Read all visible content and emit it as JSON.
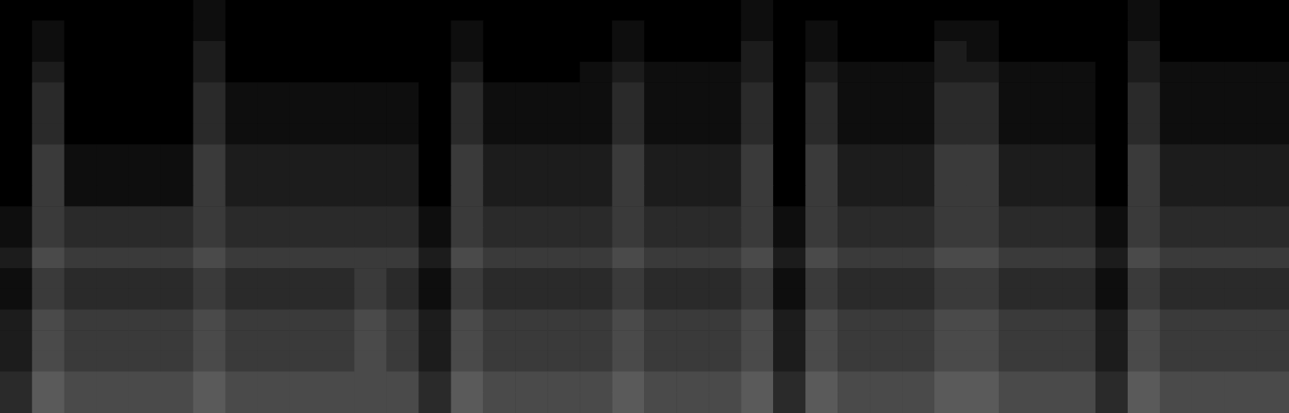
{
  "chart_data": {
    "type": "heatmap",
    "tick_labels": false,
    "grid": false,
    "zlim": [
      0,
      9
    ],
    "cells": [
      [
        0,
        0,
        0,
        0,
        0,
        0,
        1,
        0,
        0,
        0,
        0,
        0,
        0,
        0,
        0,
        0,
        0,
        0,
        0,
        0,
        0,
        0,
        0,
        1,
        0,
        0,
        0,
        0,
        0,
        0,
        0,
        0,
        0,
        0,
        0,
        1,
        0,
        0,
        0,
        0
      ],
      [
        0,
        1,
        0,
        0,
        0,
        0,
        1,
        0,
        0,
        0,
        0,
        0,
        0,
        0,
        1,
        0,
        0,
        0,
        0,
        1,
        0,
        0,
        0,
        1,
        0,
        1,
        0,
        0,
        0,
        1,
        1,
        0,
        0,
        0,
        0,
        1,
        0,
        0,
        0,
        0
      ],
      [
        0,
        1,
        0,
        0,
        0,
        0,
        2,
        0,
        0,
        0,
        0,
        0,
        0,
        0,
        1,
        0,
        0,
        0,
        0,
        1,
        0,
        0,
        0,
        2,
        0,
        1,
        0,
        0,
        0,
        2,
        1,
        0,
        0,
        0,
        0,
        2,
        0,
        0,
        0,
        0
      ],
      [
        0,
        2,
        0,
        0,
        0,
        0,
        2,
        0,
        0,
        0,
        0,
        0,
        0,
        0,
        2,
        0,
        0,
        0,
        1,
        2,
        1,
        1,
        1,
        2,
        0,
        2,
        1,
        1,
        1,
        2,
        2,
        1,
        1,
        1,
        0,
        2,
        1,
        1,
        1,
        1
      ],
      [
        0,
        3,
        0,
        0,
        0,
        0,
        3,
        1,
        1,
        1,
        1,
        1,
        1,
        0,
        3,
        1,
        1,
        1,
        1,
        3,
        1,
        1,
        1,
        3,
        0,
        3,
        1,
        1,
        1,
        3,
        3,
        1,
        1,
        1,
        0,
        3,
        1,
        1,
        1,
        1
      ],
      [
        0,
        3,
        0,
        0,
        0,
        0,
        3,
        1,
        1,
        1,
        1,
        1,
        1,
        0,
        3,
        1,
        1,
        1,
        1,
        3,
        1,
        1,
        1,
        3,
        0,
        3,
        1,
        1,
        1,
        3,
        3,
        1,
        1,
        1,
        0,
        3,
        1,
        1,
        1,
        1
      ],
      [
        0,
        3,
        0,
        0,
        0,
        0,
        3,
        1,
        1,
        1,
        1,
        1,
        1,
        0,
        3,
        1,
        1,
        1,
        1,
        3,
        1,
        1,
        1,
        3,
        0,
        3,
        1,
        1,
        1,
        3,
        3,
        1,
        1,
        1,
        0,
        3,
        1,
        1,
        1,
        1
      ],
      [
        0,
        4,
        1,
        1,
        1,
        1,
        4,
        2,
        2,
        2,
        2,
        2,
        2,
        0,
        4,
        2,
        2,
        2,
        2,
        4,
        2,
        2,
        2,
        4,
        0,
        4,
        2,
        2,
        2,
        4,
        4,
        2,
        2,
        2,
        0,
        4,
        2,
        2,
        2,
        2
      ],
      [
        0,
        4,
        1,
        1,
        1,
        1,
        4,
        2,
        2,
        2,
        2,
        2,
        2,
        0,
        4,
        2,
        2,
        2,
        2,
        4,
        2,
        2,
        2,
        4,
        0,
        4,
        2,
        2,
        2,
        4,
        4,
        2,
        2,
        2,
        0,
        4,
        2,
        2,
        2,
        2
      ],
      [
        0,
        4,
        1,
        1,
        1,
        1,
        4,
        2,
        2,
        2,
        2,
        2,
        2,
        0,
        4,
        2,
        2,
        2,
        2,
        4,
        2,
        2,
        2,
        4,
        0,
        4,
        2,
        2,
        2,
        4,
        4,
        2,
        2,
        2,
        0,
        4,
        2,
        2,
        2,
        2
      ],
      [
        1,
        4,
        3,
        3,
        3,
        3,
        4,
        3,
        3,
        3,
        3,
        3,
        3,
        1,
        4,
        3,
        3,
        3,
        3,
        4,
        3,
        3,
        3,
        4,
        1,
        4,
        3,
        3,
        3,
        4,
        4,
        3,
        3,
        3,
        1,
        4,
        3,
        3,
        3,
        3
      ],
      [
        1,
        4,
        3,
        3,
        3,
        3,
        4,
        3,
        3,
        3,
        3,
        3,
        3,
        1,
        4,
        3,
        3,
        3,
        3,
        4,
        3,
        3,
        3,
        4,
        1,
        4,
        3,
        3,
        3,
        4,
        4,
        3,
        3,
        3,
        1,
        4,
        3,
        3,
        3,
        3
      ],
      [
        2,
        5,
        4,
        4,
        4,
        4,
        5,
        4,
        4,
        4,
        4,
        4,
        4,
        2,
        5,
        4,
        4,
        4,
        4,
        5,
        4,
        4,
        4,
        5,
        2,
        5,
        4,
        4,
        4,
        5,
        5,
        4,
        4,
        4,
        2,
        5,
        4,
        4,
        4,
        4
      ],
      [
        1,
        4,
        3,
        3,
        3,
        3,
        4,
        3,
        3,
        3,
        3,
        4,
        3,
        1,
        4,
        3,
        3,
        3,
        3,
        4,
        3,
        3,
        3,
        4,
        1,
        4,
        3,
        3,
        3,
        4,
        4,
        3,
        3,
        3,
        1,
        4,
        3,
        3,
        3,
        3
      ],
      [
        1,
        4,
        3,
        3,
        3,
        3,
        4,
        3,
        3,
        3,
        3,
        4,
        3,
        1,
        4,
        3,
        3,
        3,
        3,
        4,
        3,
        3,
        3,
        4,
        1,
        4,
        3,
        3,
        3,
        4,
        4,
        3,
        3,
        3,
        1,
        4,
        3,
        3,
        3,
        3
      ],
      [
        2,
        5,
        4,
        4,
        4,
        4,
        5,
        4,
        4,
        4,
        4,
        5,
        4,
        2,
        5,
        4,
        4,
        4,
        4,
        5,
        4,
        4,
        4,
        5,
        2,
        5,
        4,
        4,
        4,
        5,
        5,
        4,
        4,
        4,
        2,
        5,
        4,
        4,
        4,
        4
      ],
      [
        2,
        5,
        4,
        4,
        4,
        4,
        5,
        4,
        4,
        4,
        4,
        5,
        4,
        2,
        5,
        4,
        4,
        4,
        4,
        5,
        4,
        4,
        4,
        5,
        2,
        5,
        4,
        4,
        4,
        5,
        5,
        4,
        4,
        4,
        2,
        5,
        4,
        4,
        4,
        4
      ],
      [
        2,
        5,
        4,
        4,
        4,
        4,
        5,
        4,
        4,
        4,
        4,
        5,
        4,
        2,
        5,
        4,
        4,
        4,
        4,
        5,
        4,
        4,
        4,
        5,
        2,
        5,
        4,
        4,
        4,
        5,
        5,
        4,
        4,
        4,
        2,
        5,
        4,
        4,
        4,
        4
      ],
      [
        3,
        6,
        5,
        5,
        5,
        5,
        6,
        5,
        5,
        5,
        5,
        5,
        5,
        3,
        6,
        5,
        5,
        5,
        5,
        6,
        5,
        5,
        5,
        6,
        3,
        6,
        5,
        5,
        5,
        6,
        6,
        5,
        5,
        5,
        3,
        6,
        5,
        5,
        5,
        5
      ],
      [
        3,
        6,
        5,
        5,
        5,
        5,
        6,
        5,
        5,
        5,
        5,
        5,
        5,
        3,
        6,
        5,
        5,
        5,
        5,
        6,
        5,
        5,
        5,
        6,
        3,
        6,
        5,
        5,
        5,
        6,
        6,
        5,
        5,
        5,
        3,
        6,
        5,
        5,
        5,
        5
      ]
    ]
  }
}
